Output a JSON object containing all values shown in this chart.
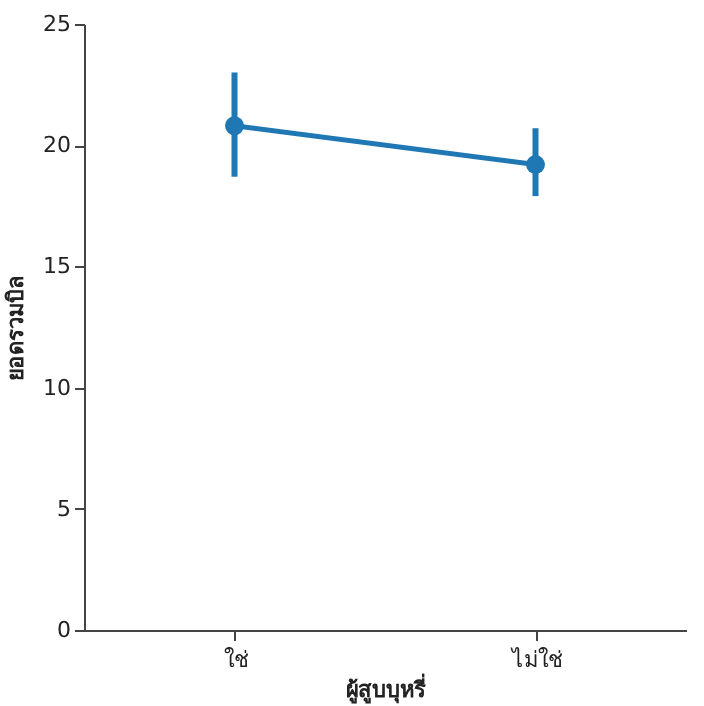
{
  "chart_data": {
    "type": "line",
    "xlabel": "ผู้สูบบุหรี่",
    "ylabel": "ยอดรวมบิล",
    "categories": [
      "ใช่",
      "ไม่ใช่"
    ],
    "series": [
      {
        "color": "#1f77b4",
        "values": [
          20.8,
          19.2
        ],
        "errors": [
          [
            18.7,
            23.0
          ],
          [
            17.9,
            20.7
          ]
        ]
      }
    ],
    "ylim": [
      0,
      25
    ],
    "yticks": [
      0,
      5,
      10,
      15,
      20,
      25
    ],
    "marker": "circle",
    "line_style": "solid"
  }
}
